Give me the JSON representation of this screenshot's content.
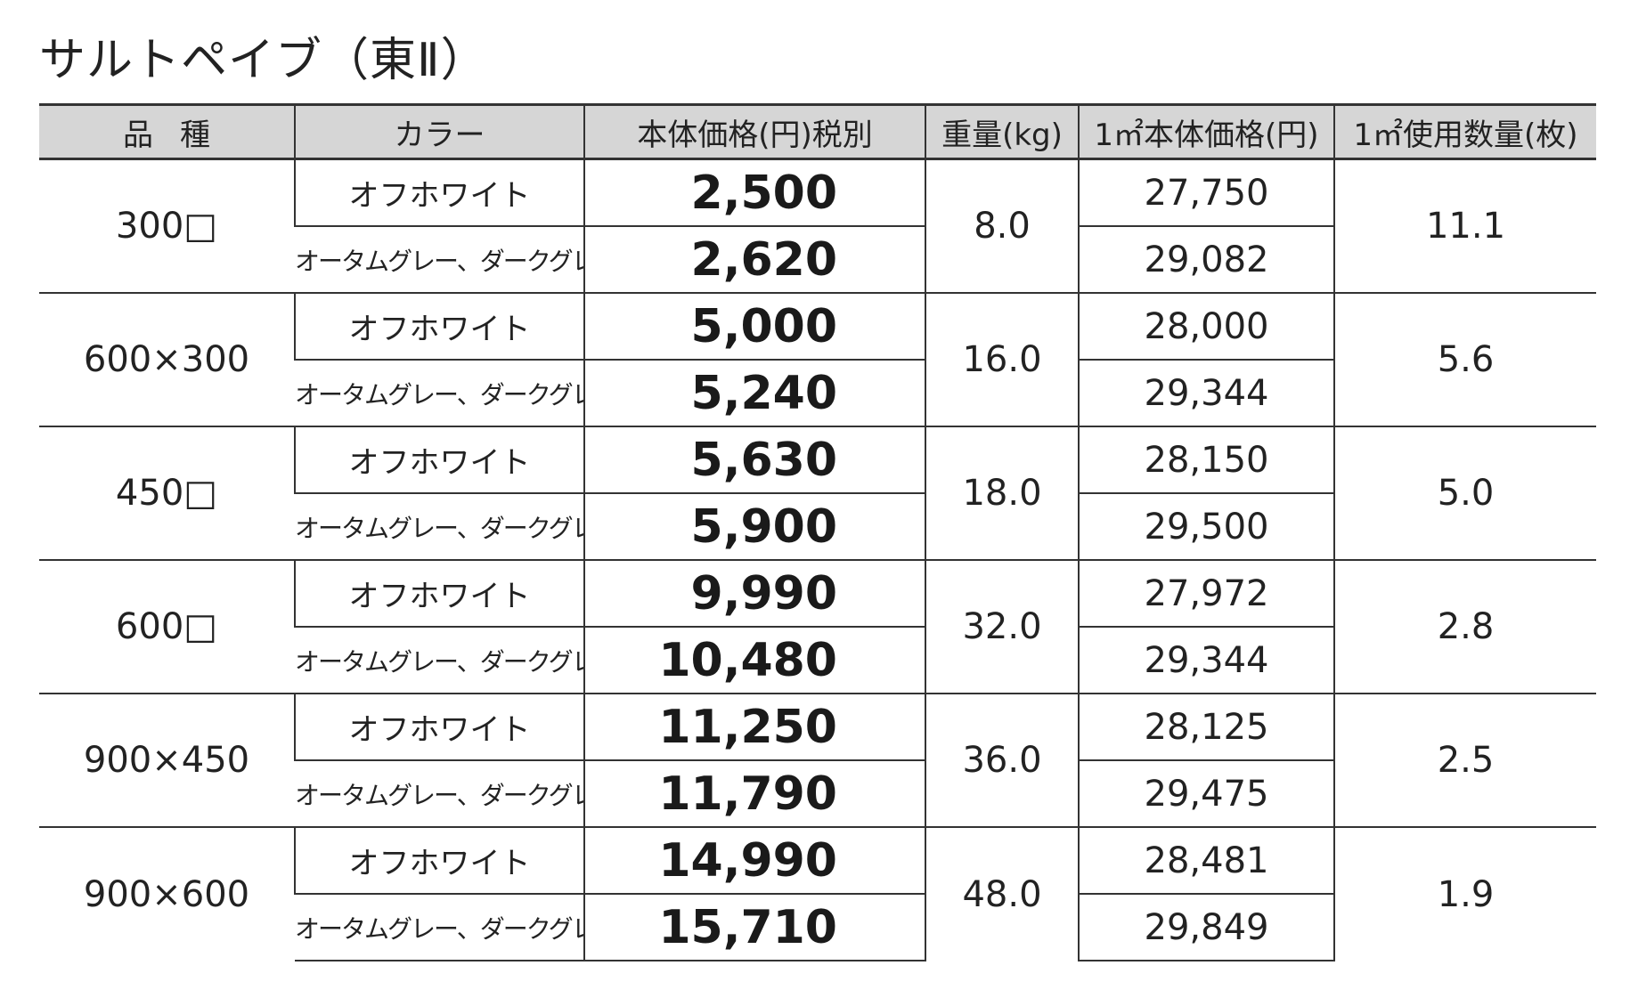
{
  "title": "サルトペイブ（東Ⅱ）",
  "headers": {
    "variety": "品種",
    "color": "カラー",
    "price": "本体価格(円)税別",
    "weight": "重量(kg)",
    "sqm_price": "1㎡本体価格(円)",
    "sqm_qty": "1㎡使用数量(枚)"
  },
  "rows": [
    {
      "variety": "300□",
      "weight": "8.0",
      "qty": "11.1",
      "items": [
        {
          "color": "オフホワイト",
          "price": "2,500",
          "sqm_price": "27,750"
        },
        {
          "color": "オータムグレー、ダークグレー",
          "price": "2,620",
          "sqm_price": "29,082"
        }
      ]
    },
    {
      "variety": "600×300",
      "weight": "16.0",
      "qty": "5.6",
      "items": [
        {
          "color": "オフホワイト",
          "price": "5,000",
          "sqm_price": "28,000"
        },
        {
          "color": "オータムグレー、ダークグレー",
          "price": "5,240",
          "sqm_price": "29,344"
        }
      ]
    },
    {
      "variety": "450□",
      "weight": "18.0",
      "qty": "5.0",
      "items": [
        {
          "color": "オフホワイト",
          "price": "5,630",
          "sqm_price": "28,150"
        },
        {
          "color": "オータムグレー、ダークグレー",
          "price": "5,900",
          "sqm_price": "29,500"
        }
      ]
    },
    {
      "variety": "600□",
      "weight": "32.0",
      "qty": "2.8",
      "items": [
        {
          "color": "オフホワイト",
          "price": "9,990",
          "sqm_price": "27,972"
        },
        {
          "color": "オータムグレー、ダークグレー",
          "price": "10,480",
          "sqm_price": "29,344"
        }
      ]
    },
    {
      "variety": "900×450",
      "weight": "36.0",
      "qty": "2.5",
      "items": [
        {
          "color": "オフホワイト",
          "price": "11,250",
          "sqm_price": "28,125"
        },
        {
          "color": "オータムグレー、ダークグレー",
          "price": "11,790",
          "sqm_price": "29,475"
        }
      ]
    },
    {
      "variety": "900×600",
      "weight": "48.0",
      "qty": "1.9",
      "items": [
        {
          "color": "オフホワイト",
          "price": "14,990",
          "sqm_price": "28,481"
        },
        {
          "color": "オータムグレー、ダークグレー",
          "price": "15,710",
          "sqm_price": "29,849"
        }
      ]
    }
  ],
  "colors": {
    "header_bg": "#d6d6d6",
    "rule": "#333333",
    "text": "#222222"
  }
}
